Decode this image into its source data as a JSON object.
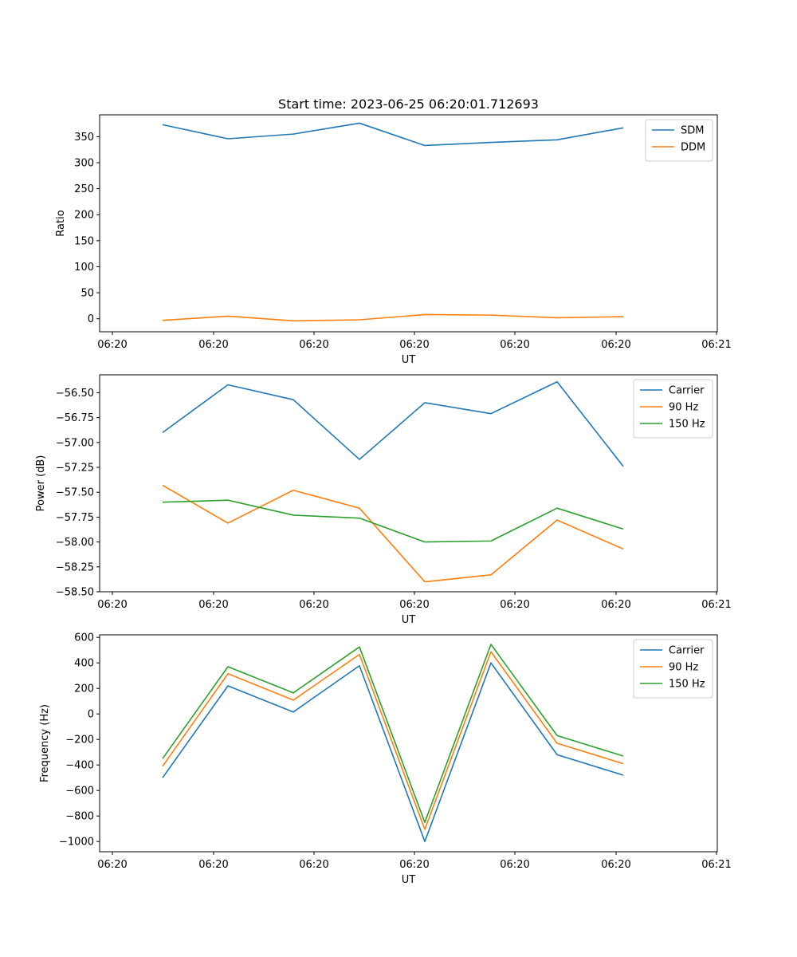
{
  "figure": {
    "title": "Start time: 2023-06-25 06:20:01.712693"
  },
  "chart_data": [
    {
      "type": "line",
      "xlabel": "UT",
      "ylabel": "Ratio",
      "ylim": [
        -25,
        392
      ],
      "x_ticks": [
        "06:20",
        "06:20",
        "06:20",
        "06:20",
        "06:20",
        "06:20",
        "06:20",
        "06:21"
      ],
      "y_ticks": [
        0,
        50,
        100,
        150,
        200,
        250,
        300,
        350
      ],
      "y_tick_labels": [
        "0",
        "50",
        "100",
        "150",
        "200",
        "250",
        "300",
        "350"
      ],
      "legend": "top-right",
      "grid": false,
      "series": [
        {
          "name": "SDM",
          "color": "#1f77b4",
          "values": [
            373,
            346,
            355,
            376,
            333,
            339,
            344,
            367
          ]
        },
        {
          "name": "DDM",
          "color": "#ff7f0e",
          "values": [
            -3,
            5,
            -4,
            -2,
            8,
            7,
            2,
            4
          ]
        }
      ]
    },
    {
      "type": "line",
      "xlabel": "UT",
      "ylabel": "Power (dB)",
      "ylim": [
        -58.5,
        -56.32
      ],
      "x_ticks": [
        "06:20",
        "06:20",
        "06:20",
        "06:20",
        "06:20",
        "06:20",
        "06:20",
        "06:21"
      ],
      "y_ticks": [
        -58.5,
        -58.25,
        -58.0,
        -57.75,
        -57.5,
        -57.25,
        -57.0,
        -56.75,
        -56.5
      ],
      "y_tick_labels": [
        "−58.50",
        "−58.25",
        "−58.00",
        "−57.75",
        "−57.50",
        "−57.25",
        "−57.00",
        "−56.75",
        "−56.50"
      ],
      "legend": "top-right",
      "grid": false,
      "series": [
        {
          "name": "Carrier",
          "color": "#1f77b4",
          "values": [
            -56.9,
            -56.42,
            -56.57,
            -57.17,
            -56.6,
            -56.71,
            -56.39,
            -57.24
          ]
        },
        {
          "name": "90 Hz",
          "color": "#ff7f0e",
          "values": [
            -57.43,
            -57.81,
            -57.48,
            -57.66,
            -58.4,
            -58.33,
            -57.78,
            -58.07
          ]
        },
        {
          "name": "150 Hz",
          "color": "#2ca02c",
          "values": [
            -57.6,
            -57.58,
            -57.73,
            -57.76,
            -58.0,
            -57.99,
            -57.66,
            -57.87
          ]
        }
      ]
    },
    {
      "type": "line",
      "xlabel": "UT",
      "ylabel": "Frequency (Hz)",
      "ylim": [
        -1080,
        620
      ],
      "x_ticks": [
        "06:20",
        "06:20",
        "06:20",
        "06:20",
        "06:20",
        "06:20",
        "06:20",
        "06:21"
      ],
      "y_ticks": [
        -1000,
        -800,
        -600,
        -400,
        -200,
        0,
        200,
        400,
        600
      ],
      "y_tick_labels": [
        "−1000",
        "−800",
        "−600",
        "−400",
        "−200",
        "0",
        "200",
        "400",
        "600"
      ],
      "legend": "top-right",
      "grid": false,
      "series": [
        {
          "name": "Carrier",
          "color": "#1f77b4",
          "values": [
            -500,
            220,
            15,
            378,
            -1000,
            400,
            -320,
            -480
          ]
        },
        {
          "name": "90 Hz",
          "color": "#ff7f0e",
          "values": [
            -410,
            315,
            108,
            466,
            -905,
            487,
            -230,
            -390
          ]
        },
        {
          "name": "150 Hz",
          "color": "#2ca02c",
          "values": [
            -350,
            370,
            165,
            525,
            -850,
            545,
            -170,
            -330
          ]
        }
      ]
    }
  ]
}
